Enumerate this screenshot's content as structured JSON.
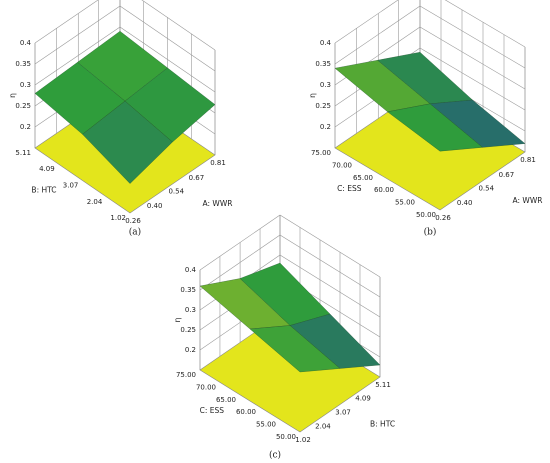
{
  "chart_data": [
    {
      "type": "surface3d",
      "caption": "(a)",
      "xlabel": "A: WWR",
      "ylabel": "B: HTC",
      "zlabel": "η",
      "xlim": [
        0.26,
        0.81
      ],
      "xticks": [
        0.26,
        {
          "value": 0.4,
          "label": "0.40"
        },
        0.54,
        0.67,
        0.81
      ],
      "ylim": [
        1.02,
        5.11
      ],
      "yticks": [
        1.02,
        2.04,
        3.07,
        4.09,
        5.11
      ],
      "zlim": [
        0.15,
        0.4
      ],
      "zticks": [
        0.2,
        0.25,
        0.3,
        0.35,
        0.4
      ],
      "surface": {
        "x": [
          0.26,
          0.535,
          0.81
        ],
        "y": [
          1.02,
          3.065,
          5.11
        ],
        "z": [
          [
            0.22,
            0.25,
            0.27
          ],
          [
            0.26,
            0.27,
            0.28
          ],
          [
            0.28,
            0.285,
            0.29
          ]
        ]
      },
      "colormap": [
        "#1f3a9e",
        "#2f9e3a",
        "#e6d21e"
      ],
      "floor_color": "#e3e51c"
    },
    {
      "type": "surface3d",
      "caption": "(b)",
      "xlabel": "A: WWR",
      "ylabel": "C: ESS",
      "zlabel": "η",
      "xlim": [
        0.26,
        0.81
      ],
      "xticks": [
        0.26,
        {
          "value": 0.4,
          "label": "0.40"
        },
        0.54,
        0.67,
        0.81
      ],
      "ylim": [
        50,
        75
      ],
      "yticks": [
        {
          "value": 50,
          "label": "50.00"
        },
        {
          "value": 55,
          "label": "55.00"
        },
        {
          "value": 60,
          "label": "60.00"
        },
        {
          "value": 65,
          "label": "65.00"
        },
        {
          "value": 70,
          "label": "70.00"
        },
        {
          "value": 75,
          "label": "75.00"
        }
      ],
      "zlim": [
        0.15,
        0.4
      ],
      "zticks": [
        0.2,
        0.25,
        0.3,
        0.35,
        0.4
      ],
      "surface": {
        "x": [
          0.26,
          0.535,
          0.81
        ],
        "y": [
          50,
          62.5,
          75
        ],
        "z": [
          [
            0.29,
            0.23,
            0.17
          ],
          [
            0.31,
            0.26,
            0.2
          ],
          [
            0.34,
            0.29,
            0.24
          ]
        ]
      },
      "colormap": [
        "#1f3a9e",
        "#2f9e3a",
        "#e6d21e"
      ],
      "floor_color": "#e3e51c"
    },
    {
      "type": "surface3d",
      "caption": "(c)",
      "xlabel": "B: HTC",
      "ylabel": "C: ESS",
      "zlabel": "η",
      "xlim": [
        1.02,
        5.11
      ],
      "xticks": [
        1.02,
        2.04,
        3.07,
        4.09,
        5.11
      ],
      "ylim": [
        50,
        75
      ],
      "yticks": [
        {
          "value": 50,
          "label": "50.00"
        },
        {
          "value": 55,
          "label": "55.00"
        },
        {
          "value": 60,
          "label": "60.00"
        },
        {
          "value": 65,
          "label": "65.00"
        },
        {
          "value": 70,
          "label": "70.00"
        },
        {
          "value": 75,
          "label": "75.00"
        }
      ],
      "zlim": [
        0.15,
        0.4
      ],
      "zticks": [
        0.2,
        0.25,
        0.3,
        0.35,
        0.4
      ],
      "surface": {
        "x": [
          1.02,
          3.065,
          5.11
        ],
        "y": [
          50,
          62.5,
          75
        ],
        "z": [
          [
            0.3,
            0.24,
            0.18
          ],
          [
            0.33,
            0.27,
            0.23
          ],
          [
            0.36,
            0.31,
            0.28
          ]
        ]
      },
      "colormap": [
        "#1f3a9e",
        "#2f9e3a",
        "#e6d21e"
      ],
      "floor_color": "#e3e51c"
    }
  ]
}
